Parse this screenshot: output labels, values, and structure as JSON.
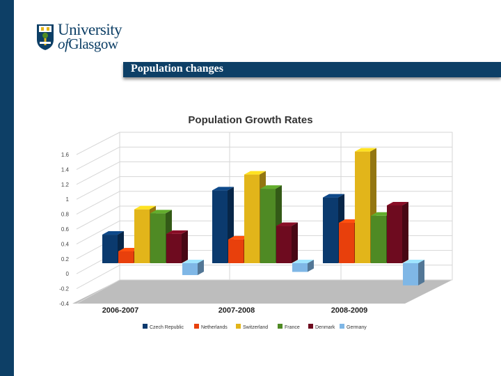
{
  "logo": {
    "line1": "University",
    "line2_prefix": "of",
    "line2_name": "Glasgow"
  },
  "slide": {
    "title": "Population changes"
  },
  "colors": {
    "brand": "#0d3f66"
  },
  "chart_data": {
    "type": "bar",
    "title": "Population Growth Rates",
    "xlabel": "",
    "ylabel": "",
    "ylim": [
      -0.4,
      1.6
    ],
    "yticks": [
      "1.6",
      "1.4",
      "1.2",
      "1",
      "0.8",
      "0.6",
      "0.4",
      "0.2",
      "0",
      "-0.2",
      "-0.4"
    ],
    "grid": true,
    "legend_position": "bottom",
    "categories": [
      "2006-2007",
      "2007-2008",
      "2008-2009"
    ],
    "series": [
      {
        "name": "Czech Republic",
        "color": "#0b3a6e",
        "values": [
          0.36,
          0.92,
          0.83
        ]
      },
      {
        "name": "Netherlands",
        "color": "#e8400c",
        "values": [
          0.15,
          0.3,
          0.51
        ]
      },
      {
        "name": "Switzerland",
        "color": "#e2b51a",
        "values": [
          0.68,
          1.12,
          1.41
        ]
      },
      {
        "name": "France",
        "color": "#4f8a24",
        "values": [
          0.63,
          0.94,
          0.6
        ]
      },
      {
        "name": "Denmark",
        "color": "#6e0b1f",
        "values": [
          0.37,
          0.47,
          0.73
        ]
      },
      {
        "name": "Germany",
        "color": "#7fb7e6",
        "values": [
          -0.15,
          -0.11,
          -0.28
        ]
      }
    ]
  }
}
